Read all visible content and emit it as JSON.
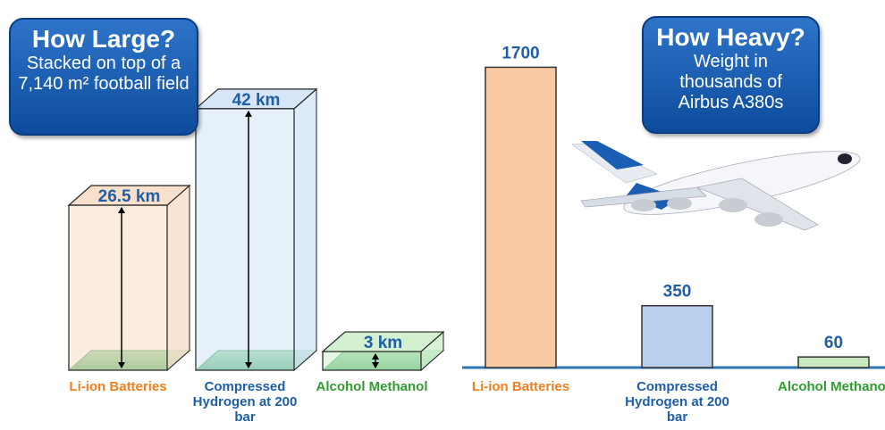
{
  "chart_data": [
    {
      "type": "box3d",
      "title": "How Large?",
      "subtitle": "Stacked on top of a 7,140 m² football field",
      "categories": [
        "Li-ion Batteries",
        "Compressed Hydrogen at 200 bar",
        "Alcohol Methanol"
      ],
      "values": [
        26.5,
        42,
        3
      ],
      "value_labels": [
        "26.5 km",
        "42 km",
        "3 km"
      ],
      "colors": [
        "#f9e0cc",
        "#d6e6f8",
        "#d3f0d0"
      ],
      "label_colors": [
        "#f07f20",
        "#1f5fa8",
        "#2f9e2f"
      ]
    },
    {
      "type": "bar",
      "title": "How Heavy?",
      "subtitle": "Weight in thousands of Airbus A380s",
      "categories": [
        "Li-ion Batteries",
        "Compressed Hydrogen at 200 bar",
        "Alcohol Methanol"
      ],
      "values": [
        1700,
        350,
        60
      ],
      "colors": [
        "#f9c9a4",
        "#b9cfee",
        "#c9e8c2"
      ],
      "label_colors": [
        "#f07f20",
        "#1f5fa8",
        "#2f9e2f"
      ]
    }
  ]
}
